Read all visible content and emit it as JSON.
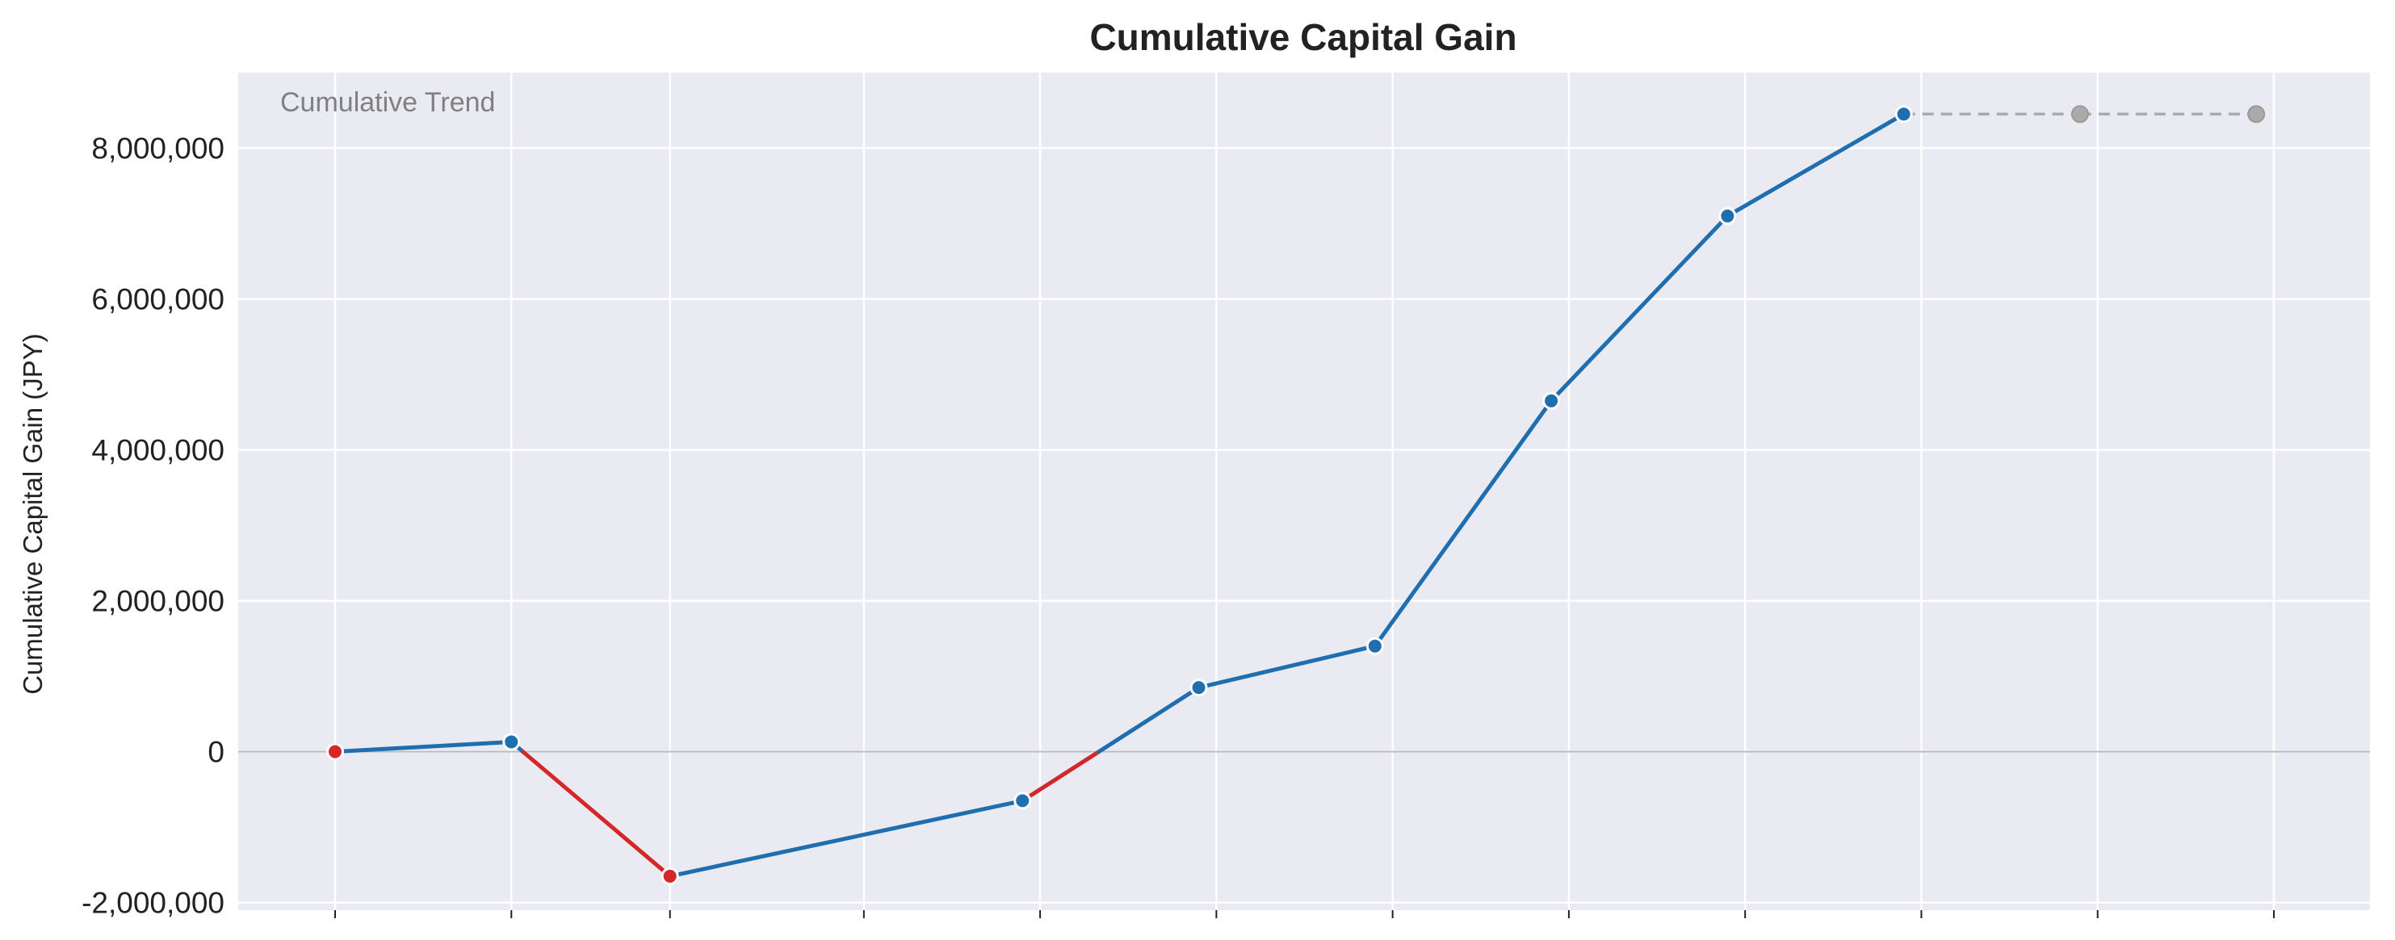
{
  "chart_data": {
    "type": "line",
    "title": "Cumulative Capital Gain",
    "xlabel": "",
    "ylabel": "Cumulative Capital Gain (JPY)",
    "annotation": "Cumulative Trend",
    "x_ticks": [
      "",
      "",
      "",
      "",
      "",
      "",
      "",
      "",
      "",
      "",
      "",
      ""
    ],
    "x_index": [
      0,
      1,
      1.9,
      3,
      4,
      5,
      6,
      7,
      8,
      9,
      10,
      11
    ],
    "ylim": [
      -2100000,
      9000000
    ],
    "yticks": [
      -2000000,
      0,
      2000000,
      4000000,
      6000000,
      8000000
    ],
    "ytick_labels": [
      "-2,000,000",
      "0",
      "2,000,000",
      "4,000,000",
      "6,000,000",
      "8,000,000"
    ],
    "grid": true,
    "zero_line": true,
    "series": [
      {
        "values": [
          0,
          130000,
          -1650000,
          -650000,
          850000,
          1400000,
          4650000,
          7100000,
          8450000
        ],
        "x_index": [
          0,
          1,
          1.9,
          3.9,
          4.9,
          5.9,
          6.9,
          7.9,
          8.9
        ],
        "positive_color": "#1f6fb0",
        "negative_color": "#d62728",
        "style": "solid"
      },
      {
        "values": [
          8450000,
          8450000,
          8450000
        ],
        "x_index": [
          8.9,
          9.9,
          10.9
        ],
        "color": "#aaaaaa",
        "style": "dashed"
      }
    ],
    "colors": {
      "plot_background": "#eaeaf2",
      "grid": "#ffffff",
      "zero_line": "#bbbbbb"
    }
  }
}
